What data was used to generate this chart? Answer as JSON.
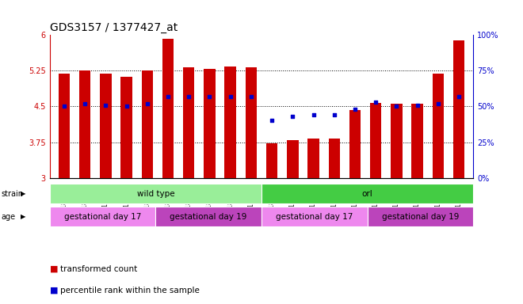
{
  "title": "GDS3157 / 1377427_at",
  "samples": [
    "GSM187669",
    "GSM187670",
    "GSM187671",
    "GSM187672",
    "GSM187673",
    "GSM187674",
    "GSM187675",
    "GSM187676",
    "GSM187677",
    "GSM187678",
    "GSM187679",
    "GSM187680",
    "GSM187681",
    "GSM187682",
    "GSM187683",
    "GSM187684",
    "GSM187685",
    "GSM187686",
    "GSM187687",
    "GSM187688"
  ],
  "bar_values": [
    5.18,
    5.25,
    5.18,
    5.12,
    5.26,
    5.92,
    5.32,
    5.28,
    5.33,
    5.32,
    3.73,
    3.8,
    3.83,
    3.83,
    4.43,
    4.58,
    4.56,
    4.56,
    5.18,
    5.89
  ],
  "percentile_values": [
    50,
    52,
    51,
    50,
    52,
    57,
    57,
    57,
    57,
    57,
    40,
    43,
    44,
    44,
    48,
    53,
    50,
    51,
    52,
    57
  ],
  "bar_color": "#cc0000",
  "dot_color": "#0000cc",
  "ylim_left": [
    3.0,
    6.0
  ],
  "ylim_right": [
    0,
    100
  ],
  "yticks_left": [
    3.0,
    3.75,
    4.5,
    5.25,
    6.0
  ],
  "ytick_labels_left": [
    "3",
    "3.75",
    "4.5",
    "5.25",
    "6"
  ],
  "yticks_right": [
    0,
    25,
    50,
    75,
    100
  ],
  "ytick_labels_right": [
    "0%",
    "25%",
    "50%",
    "75%",
    "100%"
  ],
  "grid_values": [
    3.75,
    4.5,
    5.25
  ],
  "strain_groups": [
    {
      "label": "wild type",
      "start": 0,
      "end": 10,
      "color": "#99ee99"
    },
    {
      "label": "orl",
      "start": 10,
      "end": 20,
      "color": "#44cc44"
    }
  ],
  "age_groups": [
    {
      "label": "gestational day 17",
      "start": 0,
      "end": 5,
      "color": "#ee88ee"
    },
    {
      "label": "gestational day 19",
      "start": 5,
      "end": 10,
      "color": "#bb44bb"
    },
    {
      "label": "gestational day 17",
      "start": 10,
      "end": 15,
      "color": "#ee88ee"
    },
    {
      "label": "gestational day 19",
      "start": 15,
      "end": 20,
      "color": "#bb44bb"
    }
  ],
  "legend_items": [
    {
      "label": "transformed count",
      "color": "#cc0000"
    },
    {
      "label": "percentile rank within the sample",
      "color": "#0000cc"
    }
  ],
  "background_color": "#ffffff",
  "bar_width": 0.55
}
